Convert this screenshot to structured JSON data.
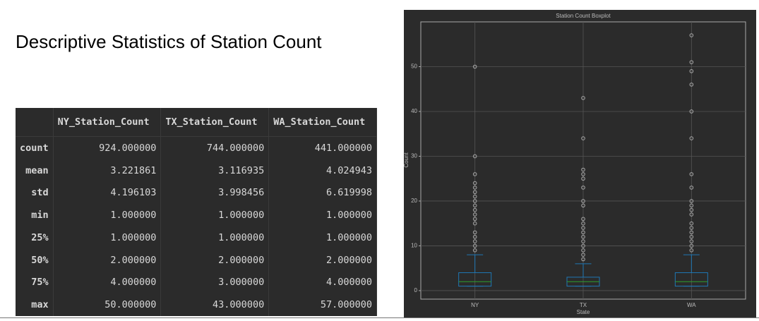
{
  "title": "Descriptive Statistics of Station Count",
  "table": {
    "columns": [
      "NY_Station_Count",
      "TX_Station_Count",
      "WA_Station_Count"
    ],
    "rows": [
      {
        "label": "count",
        "cells": [
          "924.000000",
          "744.000000",
          "441.000000"
        ]
      },
      {
        "label": "mean",
        "cells": [
          "3.221861",
          "3.116935",
          "4.024943"
        ]
      },
      {
        "label": "std",
        "cells": [
          "4.196103",
          "3.998456",
          "6.619998"
        ]
      },
      {
        "label": "min",
        "cells": [
          "1.000000",
          "1.000000",
          "1.000000"
        ]
      },
      {
        "label": "25%",
        "cells": [
          "1.000000",
          "1.000000",
          "1.000000"
        ]
      },
      {
        "label": "50%",
        "cells": [
          "2.000000",
          "2.000000",
          "2.000000"
        ]
      },
      {
        "label": "75%",
        "cells": [
          "4.000000",
          "3.000000",
          "4.000000"
        ]
      },
      {
        "label": "max",
        "cells": [
          "50.000000",
          "43.000000",
          "57.000000"
        ]
      }
    ]
  },
  "chart_data": {
    "type": "box",
    "title": "Station Count Boxplot",
    "x_label": "State",
    "y_label": "Count",
    "categories": [
      "NY",
      "TX",
      "WA"
    ],
    "boxes": [
      {
        "whislo": 1,
        "q1": 1,
        "med": 2,
        "q3": 4,
        "whishi": 8,
        "fliers": [
          9,
          10,
          11,
          12,
          13,
          15,
          16,
          17,
          18,
          19,
          20,
          21,
          22,
          23,
          24,
          26,
          30,
          50
        ]
      },
      {
        "whislo": 1,
        "q1": 1,
        "med": 2,
        "q3": 3,
        "whishi": 6,
        "fliers": [
          7,
          8,
          9,
          10,
          11,
          12,
          13,
          14,
          15,
          16,
          19,
          20,
          23,
          25,
          26,
          27,
          34,
          43
        ]
      },
      {
        "whislo": 1,
        "q1": 1,
        "med": 2,
        "q3": 4,
        "whishi": 8,
        "fliers": [
          9,
          10,
          11,
          12,
          13,
          14,
          15,
          17,
          18,
          19,
          20,
          23,
          26,
          34,
          40,
          46,
          49,
          51,
          57
        ]
      }
    ],
    "box_color": "#1f77b4",
    "median_color": "#2ca02c",
    "flier_color": "#aaaaaa",
    "ylim": [
      -1.9,
      60
    ],
    "yticks": [
      0,
      10,
      20,
      30,
      40,
      50
    ],
    "grid": true
  }
}
